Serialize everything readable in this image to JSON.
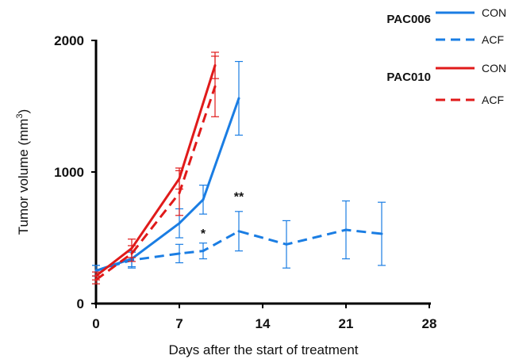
{
  "chart_data": {
    "type": "line",
    "xlabel": "Days after the start of treatment",
    "ylabel_main": "Tumor volume (mm",
    "ylabel_sup": "3",
    "ylabel_close": ")",
    "xlim": [
      0,
      28
    ],
    "ylim": [
      0,
      2000
    ],
    "x_ticks": [
      0,
      7,
      14,
      21,
      28
    ],
    "x_tick_labels": [
      "0",
      "7",
      "14",
      "21",
      "28"
    ],
    "y_ticks": [
      0,
      1000,
      2000
    ],
    "y_tick_labels": [
      "0",
      "1000",
      "2000"
    ],
    "grid": false,
    "legend_position": "top-right",
    "legend_groups": [
      {
        "label": "PAC006",
        "entries": [
          {
            "label": "CON",
            "color": "#1a7de3",
            "dash": "solid"
          },
          {
            "label": "ACF",
            "color": "#1a7de3",
            "dash": "dashed"
          }
        ]
      },
      {
        "label": "PAC010",
        "entries": [
          {
            "label": "CON",
            "color": "#e01a1a",
            "dash": "solid"
          },
          {
            "label": "ACF",
            "color": "#e01a1a",
            "dash": "dashed"
          }
        ]
      }
    ],
    "series": [
      {
        "group": "PAC006",
        "name": "CON",
        "color": "#1a7de3",
        "dash": "solid",
        "x": [
          0,
          3,
          7,
          9,
          12
        ],
        "y": [
          250,
          340,
          610,
          790,
          1560
        ],
        "err": [
          40,
          60,
          110,
          110,
          280
        ]
      },
      {
        "group": "PAC006",
        "name": "ACF",
        "color": "#1a7de3",
        "dash": "dashed",
        "x": [
          0,
          3,
          7,
          9,
          12,
          16,
          21,
          24
        ],
        "y": [
          250,
          330,
          380,
          400,
          550,
          450,
          560,
          530
        ],
        "err": [
          40,
          60,
          70,
          60,
          150,
          180,
          220,
          240
        ]
      },
      {
        "group": "PAC010",
        "name": "CON",
        "color": "#e01a1a",
        "dash": "solid",
        "x": [
          0,
          3,
          7,
          10
        ],
        "y": [
          210,
          420,
          950,
          1810
        ],
        "err": [
          30,
          70,
          80,
          100
        ]
      },
      {
        "group": "PAC010",
        "name": "ACF",
        "color": "#e01a1a",
        "dash": "dashed",
        "x": [
          0,
          3,
          7,
          10
        ],
        "y": [
          180,
          380,
          840,
          1650
        ],
        "err": [
          30,
          60,
          170,
          230
        ]
      }
    ],
    "annotations": [
      {
        "text": "*",
        "x": 9,
        "y": 500
      },
      {
        "text": "**",
        "x": 12,
        "y": 780
      }
    ]
  }
}
